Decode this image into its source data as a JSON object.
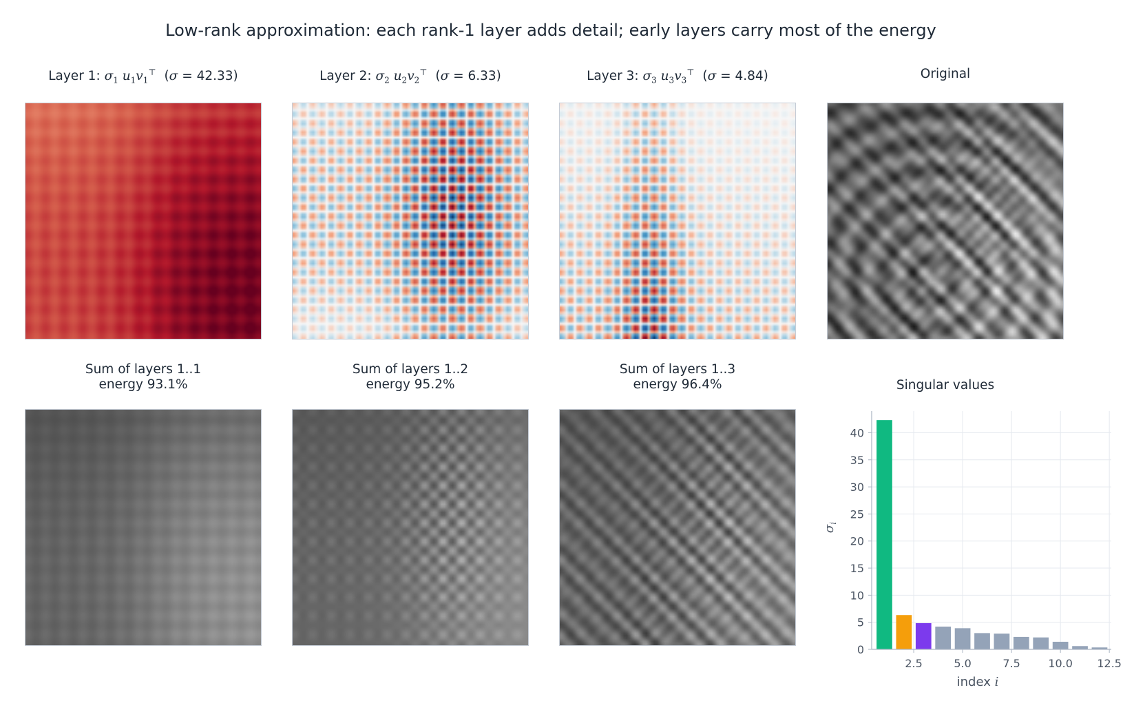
{
  "title": "Low-rank approximation: each rank-1 layer adds detail; early layers carry most of the energy",
  "layers": [
    {
      "prefix": "Layer 1: ",
      "sigma_text": "42.33"
    },
    {
      "prefix": "Layer 2: ",
      "sigma_text": "6.33"
    },
    {
      "prefix": "Layer 3: ",
      "sigma_text": "4.84"
    }
  ],
  "original_title": "Original",
  "sums": [
    {
      "line1": "Sum of layers 1..1",
      "line2": "energy 93.1%"
    },
    {
      "line1": "Sum of layers 1..2",
      "line2": "energy 95.2%"
    },
    {
      "line1": "Sum of layers 1..3",
      "line2": "energy 96.4%"
    }
  ],
  "colors": {
    "layer_positive": "#67001f",
    "layer_negative": "#053061",
    "bar_layer1": "#10b981",
    "bar_layer2": "#f59e0b",
    "bar_layer3": "#7c3aed",
    "bar_rest": "#94a3b8",
    "grid": "#e5e9ef",
    "axis": "#aab4c2",
    "tick_text": "#4b5563"
  },
  "chart_data": {
    "type": "bar",
    "title": "Singular values",
    "xlabel": "index",
    "xlabel_var": "i",
    "ylabel_var": "σ",
    "ylabel_sub": "i",
    "x": [
      1,
      2,
      3,
      4,
      5,
      6,
      7,
      8,
      9,
      10,
      11,
      12
    ],
    "values": [
      42.33,
      6.33,
      4.84,
      4.2,
      3.9,
      3.0,
      2.9,
      2.3,
      2.2,
      1.4,
      0.6,
      0.35
    ],
    "xlim": [
      0.35,
      12.6
    ],
    "ylim": [
      0,
      44
    ],
    "xticks": [
      2.5,
      5.0,
      7.5,
      10.0,
      12.5
    ],
    "xtick_labels": [
      "2.5",
      "5.0",
      "7.5",
      "10.0",
      "12.5"
    ],
    "yticks": [
      0,
      5,
      10,
      15,
      20,
      25,
      30,
      35,
      40
    ],
    "ytick_labels": [
      "0",
      "5",
      "10",
      "15",
      "20",
      "25",
      "30",
      "35",
      "40"
    ],
    "grid": true
  }
}
